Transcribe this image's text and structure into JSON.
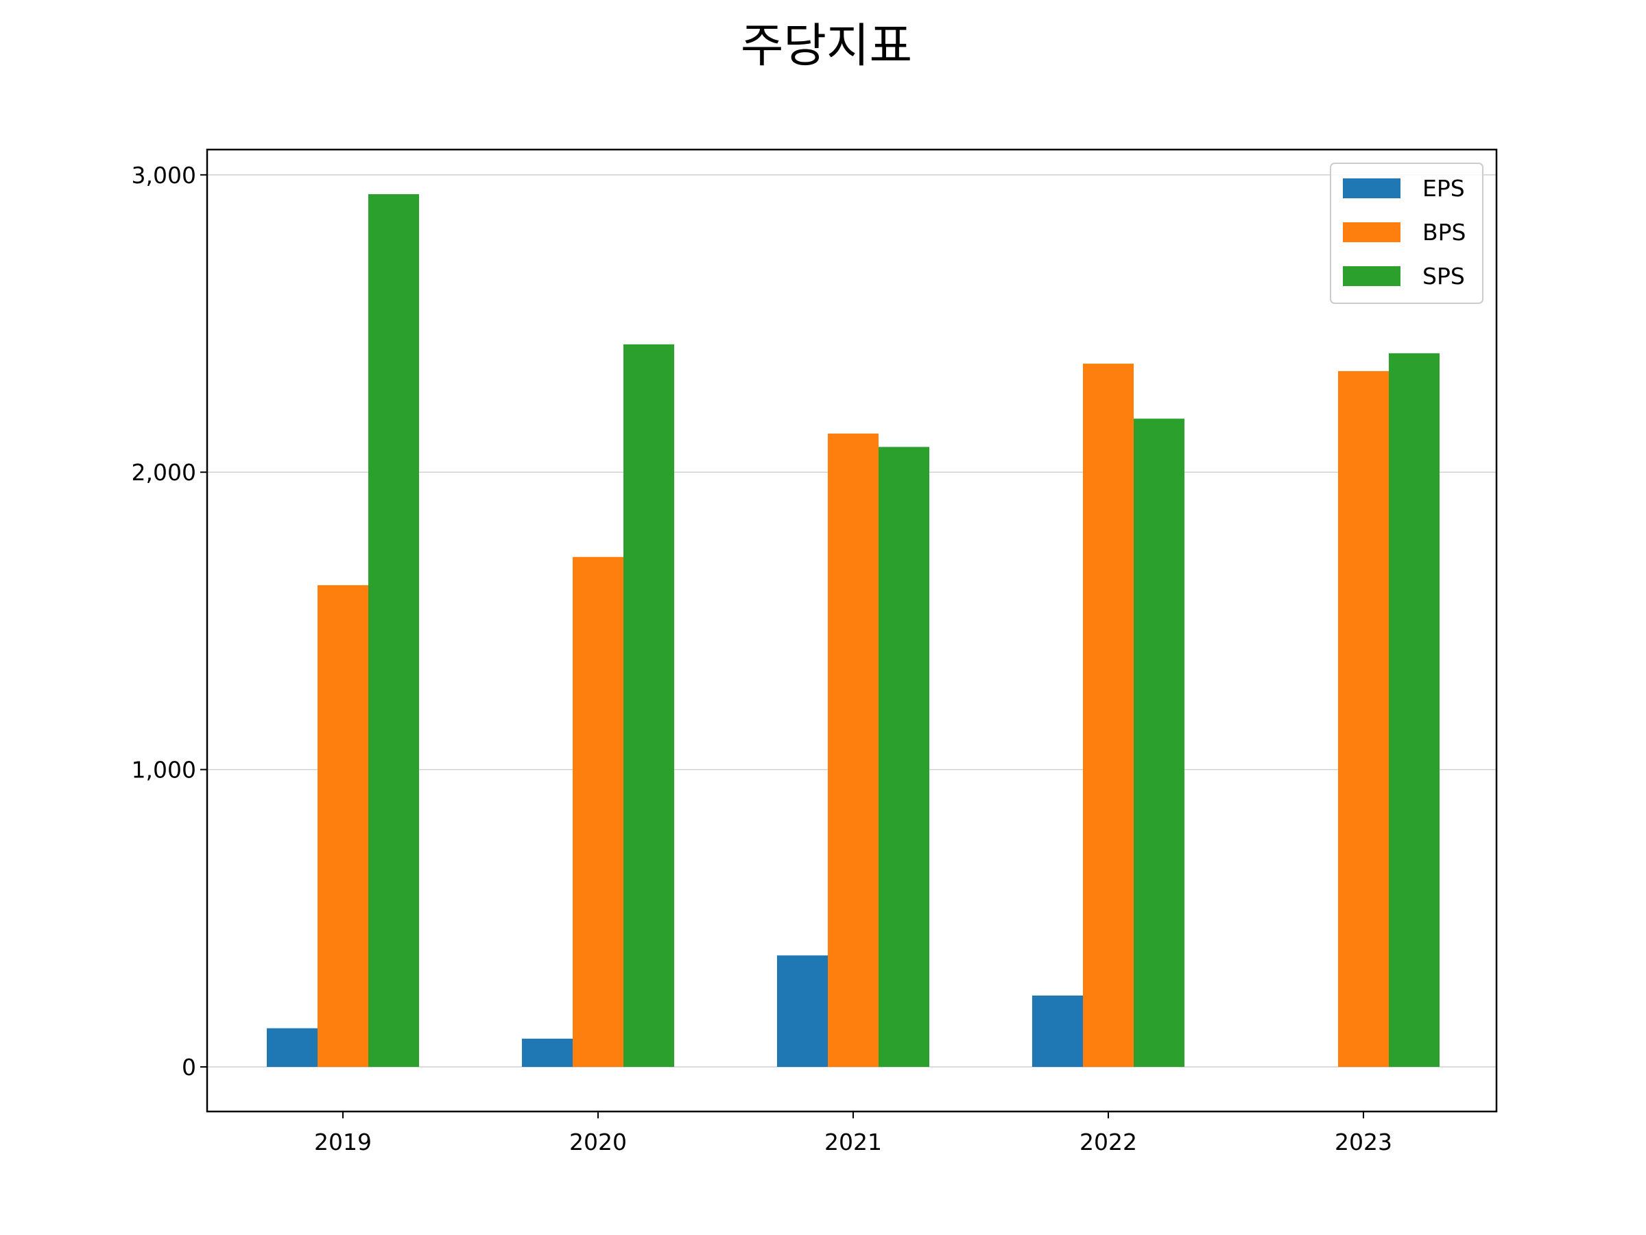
{
  "chart_data": {
    "type": "bar",
    "title": "주당지표",
    "xlabel": "",
    "ylabel": "",
    "categories": [
      "2019",
      "2020",
      "2021",
      "2022",
      "2023"
    ],
    "series": [
      {
        "name": "EPS",
        "color": "#1f77b4",
        "values": [
          130,
          95,
          375,
          240,
          0
        ]
      },
      {
        "name": "BPS",
        "color": "#ff7f0e",
        "values": [
          1620,
          1715,
          2130,
          2365,
          2340
        ]
      },
      {
        "name": "SPS",
        "color": "#2ca02c",
        "values": [
          2935,
          2430,
          2085,
          2180,
          2400
        ]
      }
    ],
    "ylim": [
      -150,
      3085
    ],
    "yticks": [
      0,
      1000,
      2000,
      3000
    ],
    "ytick_labels": [
      "0",
      "1,000",
      "2,000",
      "3,000"
    ],
    "grid": "y",
    "legend": "top-right"
  }
}
